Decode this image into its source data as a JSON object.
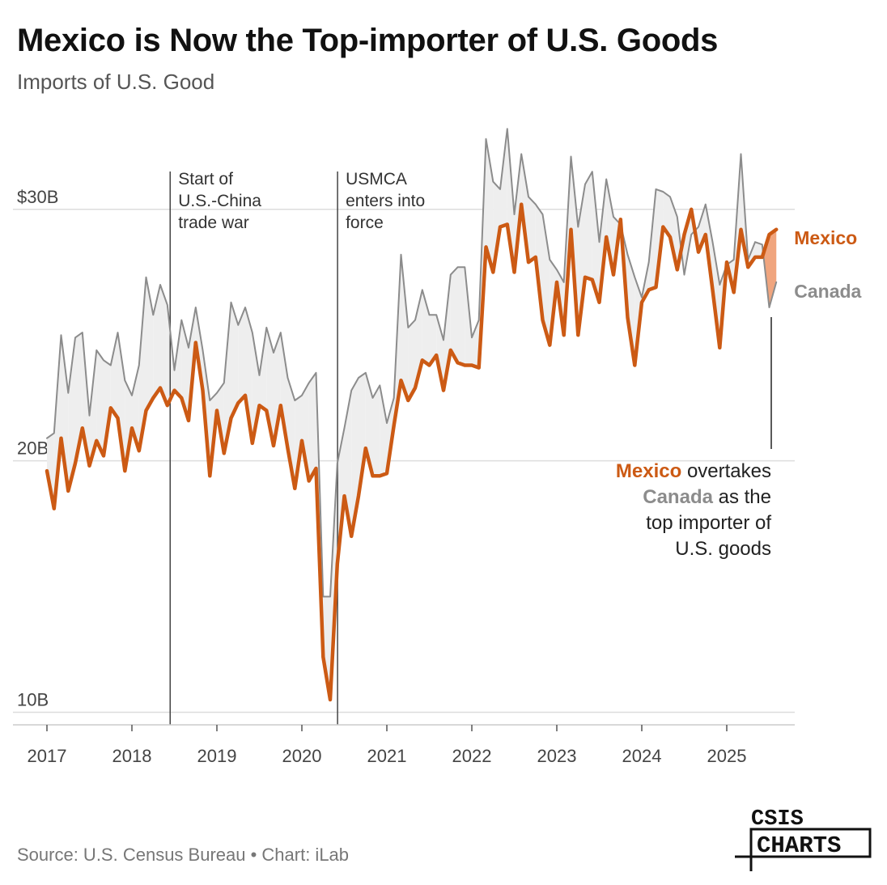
{
  "title": "Mexico is Now the Top-importer of U.S. Goods",
  "subtitle": "Imports of U.S. Good",
  "source": "Source: U.S. Census Bureau • Chart: iLab",
  "logo": {
    "line1": "CSIS",
    "line2": "CHARTS"
  },
  "colors": {
    "mexico": "#cc5a14",
    "canada": "#8c8c8c",
    "fill": "#eeeeee",
    "overtake_fill": "#f0a57e",
    "grid": "#dddddd"
  },
  "events": [
    {
      "x": 2018.45,
      "lines": [
        "Start of",
        "U.S.-China",
        "trade war"
      ]
    },
    {
      "x": 2020.42,
      "lines": [
        "USMCA",
        "enters into",
        "force"
      ]
    }
  ],
  "annotation": {
    "parts": [
      {
        "text": "Mexico",
        "series": "mexico"
      },
      {
        "text": " overtakes",
        "series": null
      },
      {
        "text": "Canada",
        "series": "canada"
      },
      {
        "text": " as the",
        "series": null
      },
      {
        "text": "top importer of",
        "series": null
      },
      {
        "text": "U.S. goods",
        "series": null
      }
    ]
  },
  "chart_data": {
    "type": "line",
    "title": "Mexico is Now the Top-importer of U.S. Goods",
    "subtitle": "Imports of U.S. Good",
    "x_ticks": [
      "2017",
      "2018",
      "2019",
      "2020",
      "2021",
      "2022",
      "2023",
      "2024",
      "2025"
    ],
    "y_ticks": [
      {
        "value": 10,
        "label": "10B"
      },
      {
        "value": 20,
        "label": "20B"
      },
      {
        "value": 30,
        "label": "$30B"
      }
    ],
    "ylim": [
      9.5,
      33.5
    ],
    "xlim": [
      2016.6,
      2025.8
    ],
    "x_start": "2017-01",
    "x_end": "2025-08",
    "grid": "horizontal",
    "legend": "direct labels at right end of lines",
    "series": [
      {
        "name": "Mexico",
        "values": [
          19.6,
          18.1,
          20.9,
          18.8,
          19.9,
          21.3,
          19.8,
          20.8,
          20.2,
          22.1,
          21.7,
          19.6,
          21.3,
          20.4,
          22.0,
          22.5,
          22.9,
          22.2,
          22.8,
          22.5,
          21.6,
          24.7,
          22.8,
          19.4,
          22.0,
          20.3,
          21.7,
          22.3,
          22.6,
          20.7,
          22.2,
          22.0,
          20.6,
          22.2,
          20.5,
          18.9,
          20.8,
          19.2,
          19.7,
          12.2,
          10.5,
          15.9,
          18.6,
          17.0,
          18.6,
          20.5,
          19.4,
          19.4,
          19.5,
          21.4,
          23.2,
          22.4,
          22.9,
          24.0,
          23.8,
          24.2,
          22.8,
          24.4,
          23.9,
          23.8,
          23.8,
          23.7,
          28.5,
          27.5,
          29.3,
          29.4,
          27.5,
          30.2,
          27.9,
          28.1,
          25.6,
          24.6,
          27.1,
          25.0,
          29.2,
          25.0,
          27.3,
          27.2,
          26.3,
          28.9,
          27.4,
          29.6,
          25.7,
          23.8,
          26.3,
          26.8,
          26.9,
          29.3,
          28.9,
          27.6,
          29.0,
          30.0,
          28.3,
          29.0,
          26.8,
          24.5,
          27.9,
          26.7,
          29.2,
          27.7,
          28.1,
          28.1,
          29.0,
          29.2
        ]
      },
      {
        "name": "Canada",
        "values": [
          20.9,
          21.1,
          25.0,
          22.7,
          24.9,
          25.1,
          21.8,
          24.4,
          24.0,
          23.8,
          25.1,
          23.2,
          22.6,
          23.8,
          27.3,
          25.8,
          27.0,
          26.2,
          23.6,
          25.6,
          24.5,
          26.1,
          24.4,
          22.4,
          22.7,
          23.1,
          26.3,
          25.4,
          26.1,
          25.1,
          23.4,
          25.3,
          24.3,
          25.1,
          23.3,
          22.4,
          22.6,
          23.1,
          23.5,
          14.6,
          14.6,
          19.9,
          21.3,
          22.8,
          23.3,
          23.5,
          22.5,
          23.0,
          21.5,
          22.5,
          28.2,
          25.3,
          25.6,
          26.8,
          25.8,
          25.8,
          24.8,
          27.4,
          27.7,
          27.7,
          24.9,
          25.6,
          32.8,
          31.1,
          30.8,
          33.2,
          29.8,
          32.2,
          30.5,
          30.2,
          29.8,
          28.0,
          27.6,
          27.1,
          32.1,
          29.3,
          31.0,
          31.5,
          28.7,
          31.2,
          29.7,
          29.4,
          28.2,
          27.3,
          26.5,
          27.9,
          30.8,
          30.7,
          30.5,
          29.7,
          27.4,
          29.0,
          29.3,
          30.2,
          28.7,
          27.0,
          27.8,
          28.0,
          32.2,
          28.0,
          28.7,
          28.6,
          26.1,
          27.1
        ]
      }
    ]
  }
}
